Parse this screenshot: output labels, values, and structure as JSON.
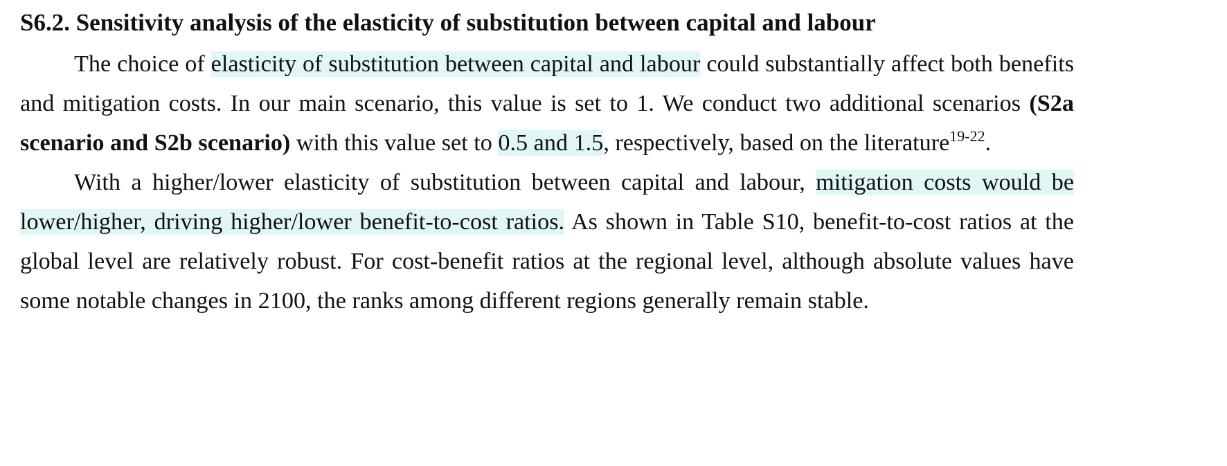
{
  "section": {
    "heading": "S6.2. Sensitivity analysis of the elasticity of substitution between capital and labour"
  },
  "paragraph1": {
    "t1": "The choice of ",
    "h1": "elasticity of substitution between capital and labour",
    "t2": " could substantially affect both benefits and mitigation costs. In our main scenario, this value is set to 1. We conduct two additional scenarios ",
    "b1": "(S2a scenario and S2b scenario)",
    "t3": " with this value set to ",
    "h2": "0.5 and 1.5",
    "t4": ", respectively, based on the literature",
    "citation": "19-22",
    "t5": "."
  },
  "paragraph2": {
    "t1": "With a higher/lower elasticity of substitution between capital and labour, ",
    "h1": "mitigation costs would be lower/higher, driving higher/lower benefit-to-cost ratios.",
    "t2": " As shown in Table S10, benefit-to-cost ratios at the global level are relatively robust. For cost-benefit ratios at the regional level, although absolute values have some notable changes in 2100, the ranks among different regions generally remain stable."
  },
  "colors": {
    "highlight": "#e0f7f6",
    "text": "#111111"
  }
}
